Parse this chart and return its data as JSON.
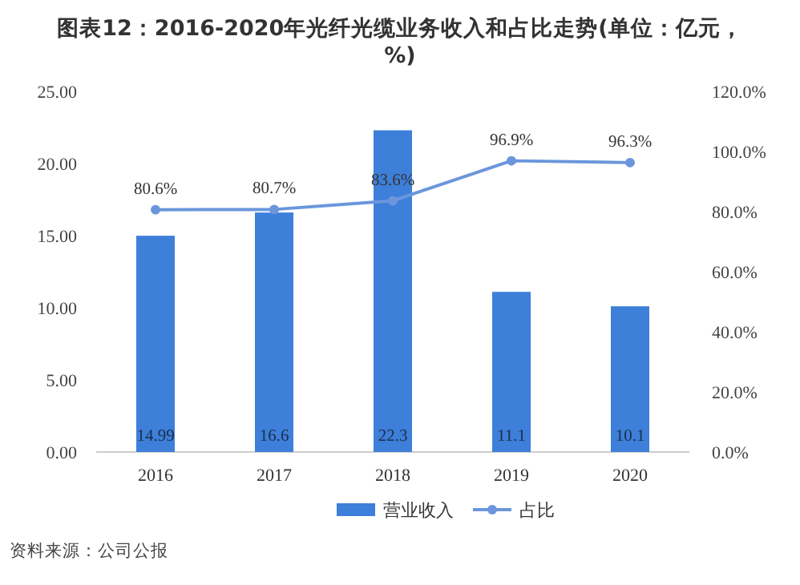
{
  "chart_data": {
    "type": "bar",
    "title": "图表12：2016-2020年光纤光缆业务收入和占比走势(单位：亿元，%)",
    "categories": [
      "2016",
      "2017",
      "2018",
      "2019",
      "2020"
    ],
    "series": [
      {
        "name": "营业收入",
        "color": "#3d7fd9",
        "values": [
          14.99,
          16.6,
          22.3,
          11.1,
          10.1
        ],
        "value_labels": [
          "14.99",
          "16.6",
          "22.3",
          "11.1",
          "10.1"
        ]
      },
      {
        "name": "占比",
        "type": "line",
        "axis": "y2",
        "color": "#6b96dc",
        "marker": "circle",
        "values": [
          80.6,
          80.7,
          83.6,
          96.9,
          96.3
        ],
        "value_labels": [
          "80.6%",
          "80.7%",
          "83.6%",
          "96.9%",
          "96.3%"
        ]
      }
    ],
    "ylim": [
      0,
      25
    ],
    "yticks": [
      {
        "value": 0,
        "label": "0.00"
      },
      {
        "value": 5,
        "label": "5.00"
      },
      {
        "value": 10,
        "label": "10.00"
      },
      {
        "value": 15,
        "label": "15.00"
      },
      {
        "value": 20,
        "label": "20.00"
      },
      {
        "value": 25,
        "label": "25.00"
      }
    ],
    "y2lim": [
      0,
      120
    ],
    "y2ticks": [
      {
        "value": 0,
        "label": "0.0%"
      },
      {
        "value": 20,
        "label": "20.0%"
      },
      {
        "value": 40,
        "label": "40.0%"
      },
      {
        "value": 60,
        "label": "60.0%"
      },
      {
        "value": 80,
        "label": "80.0%"
      },
      {
        "value": 100,
        "label": "100.0%"
      },
      {
        "value": 120,
        "label": "120.0%"
      }
    ],
    "legend": "bottom",
    "annotations": [
      "资料来源：公司公报"
    ]
  }
}
